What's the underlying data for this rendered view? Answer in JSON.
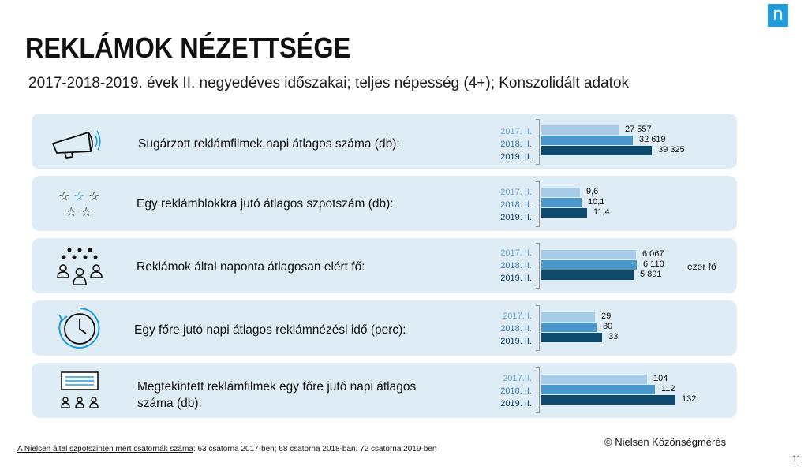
{
  "logo_letter": "n",
  "title": "REKLÁMOK NÉZETTSÉGE",
  "subtitle": "2017-2018-2019. évek II. negyedéves időszakai; teljes népesség (4+); Konszolidált adatok",
  "colors": {
    "y2017": "#a6cce8",
    "y2018": "#4a97cc",
    "y2019": "#0d4a6e",
    "panel": "#deecf6"
  },
  "chart_data": [
    {
      "type": "bar",
      "icon": "megaphone-icon",
      "title": "Sugárzott reklámfilmek napi átlagos száma (db):",
      "categories": [
        "2017. II.",
        "2018. II.",
        "2019. II."
      ],
      "values": [
        27557,
        32619,
        39325
      ],
      "value_labels": [
        "27 557",
        "32 619",
        "39 325"
      ],
      "unit": ""
    },
    {
      "type": "bar",
      "icon": "stars-icon",
      "title": "Egy reklámblokkra jutó átlagos szpotszám (db):",
      "categories": [
        "2017. II.",
        "2018. II.",
        "2019. II."
      ],
      "values": [
        9.6,
        10.1,
        11.4
      ],
      "value_labels": [
        "9,6",
        "10,1",
        "11,4"
      ],
      "unit": ""
    },
    {
      "type": "bar",
      "icon": "people-icon",
      "title": "Reklámok által naponta átlagosan elért fő:",
      "categories": [
        "2017. II.",
        "2018. II.",
        "2019. II."
      ],
      "values": [
        6067,
        6110,
        5891
      ],
      "value_labels": [
        "6 067",
        "6 110",
        "5 891"
      ],
      "unit": "ezer fő"
    },
    {
      "type": "bar",
      "icon": "clock-icon",
      "title": "Egy főre jutó napi átlagos reklámnézési idő (perc):",
      "categories": [
        "2017.II.",
        "2018. II.",
        "2019. II."
      ],
      "values": [
        29,
        30,
        33
      ],
      "value_labels": [
        "29",
        "30",
        "33"
      ],
      "unit": ""
    },
    {
      "type": "bar",
      "icon": "screen-audience-icon",
      "title_lines": [
        "Megtekintett reklámfilmek egy főre jutó napi átlagos",
        "száma (db):"
      ],
      "categories": [
        "2017.II.",
        "2018. II.",
        "2019. II."
      ],
      "values": [
        104,
        112,
        132
      ],
      "value_labels": [
        "104",
        "112",
        "132"
      ],
      "unit": ""
    }
  ],
  "footnote": {
    "underlined": "A Nielsen által szpotszinten mért csatornák száma",
    "rest": ": 63 csatorna 2017-ben; 68 csatorna 2018-ban; 72 csatorna 2019-ben"
  },
  "copyright": "© Nielsen Közönségmérés",
  "page_number": "11"
}
